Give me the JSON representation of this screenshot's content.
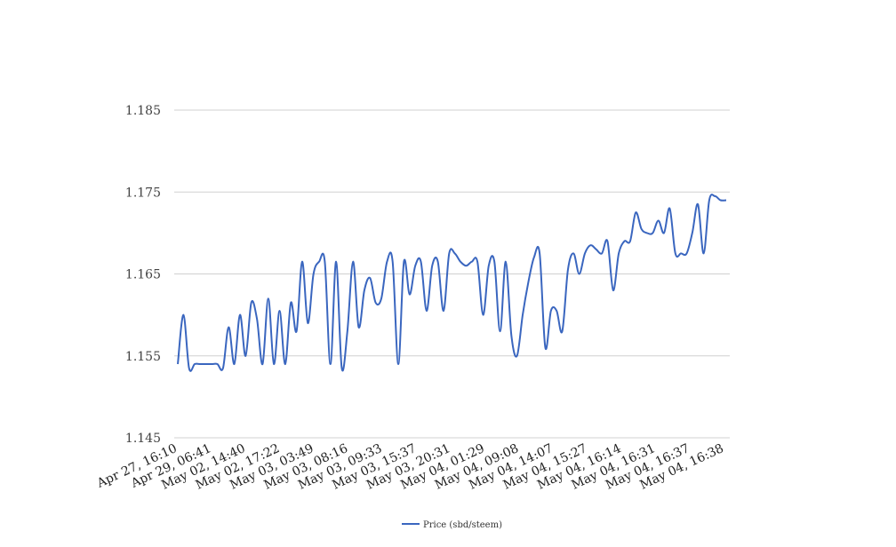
{
  "chart_data": {
    "type": "line",
    "title": "",
    "xlabel": "",
    "ylabel": "",
    "ylim": [
      1.145,
      1.185
    ],
    "yticks": [
      "1.185",
      "1.175",
      "1.165",
      "1.155",
      "1.145"
    ],
    "grid": true,
    "legend_placement": "bottom-center",
    "x_tick_labels": [
      "Apr 27, 16:10",
      "Apr 29, 06:41",
      "May 02, 14:40",
      "May 02, 17:22",
      "May 03, 03:49",
      "May 03, 08:16",
      "May 03, 09:33",
      "May 03, 15:37",
      "May 03, 20:31",
      "May 04, 01:29",
      "May 04, 09:08",
      "May 04, 14:07",
      "May 04, 15:27",
      "May 04, 16:14",
      "May 04, 16:31",
      "May 04, 16:37",
      "May 04, 16:38"
    ],
    "series": [
      {
        "name": "Price (sbd/steem)",
        "color": "#3a66bf",
        "values": [
          1.154,
          1.16,
          1.1535,
          1.154,
          1.154,
          1.154,
          1.154,
          1.154,
          1.1535,
          1.1585,
          1.154,
          1.16,
          1.155,
          1.1615,
          1.1595,
          1.154,
          1.162,
          1.154,
          1.1605,
          1.154,
          1.1615,
          1.158,
          1.1665,
          1.159,
          1.165,
          1.1665,
          1.1665,
          1.154,
          1.1665,
          1.1535,
          1.158,
          1.1665,
          1.1585,
          1.163,
          1.1645,
          1.1615,
          1.162,
          1.1665,
          1.1665,
          1.154,
          1.1665,
          1.1625,
          1.166,
          1.1665,
          1.1605,
          1.166,
          1.1665,
          1.1605,
          1.1675,
          1.1675,
          1.1665,
          1.166,
          1.1665,
          1.1665,
          1.16,
          1.166,
          1.1665,
          1.158,
          1.1665,
          1.1575,
          1.155,
          1.16,
          1.164,
          1.167,
          1.1675,
          1.156,
          1.1605,
          1.1605,
          1.158,
          1.1655,
          1.1675,
          1.165,
          1.1675,
          1.1685,
          1.168,
          1.1675,
          1.169,
          1.163,
          1.1675,
          1.169,
          1.169,
          1.1725,
          1.1705,
          1.17,
          1.17,
          1.1715,
          1.17,
          1.173,
          1.1675,
          1.1675,
          1.1675,
          1.17,
          1.1735,
          1.1675,
          1.174,
          1.1745,
          1.174,
          1.174
        ]
      }
    ]
  }
}
